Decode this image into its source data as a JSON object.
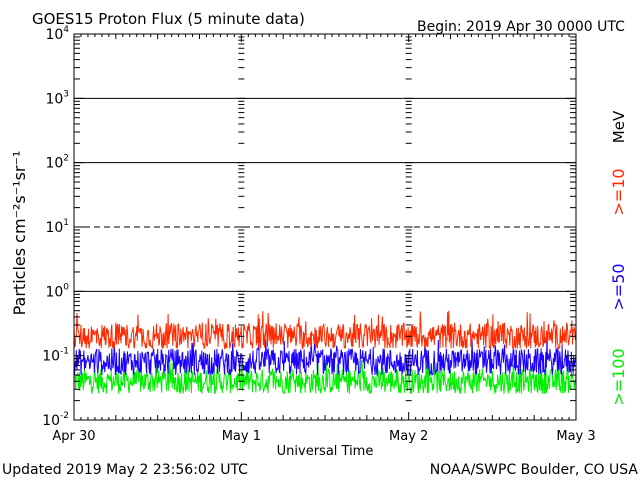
{
  "chart_data": {
    "type": "line",
    "title": "GOES15 Proton Flux (5 minute data)",
    "begin_label": "Begin: 2019 Apr 30 0000 UTC",
    "xlabel": "Universal Time",
    "ylabel": "Particles cm⁻²s⁻¹sr⁻¹",
    "y_scale": "log",
    "ylim": [
      0.01,
      10000
    ],
    "y_ticks": [
      {
        "base": "10",
        "exp": "4",
        "value": 10000
      },
      {
        "base": "10",
        "exp": "3",
        "value": 1000
      },
      {
        "base": "10",
        "exp": "2",
        "value": 100
      },
      {
        "base": "10",
        "exp": "1",
        "value": 10
      },
      {
        "base": "10",
        "exp": "0",
        "value": 1
      },
      {
        "base": "10",
        "exp": "-1",
        "value": 0.1
      },
      {
        "base": "10",
        "exp": "-2",
        "value": 0.01
      }
    ],
    "x_ticks": [
      "Apr 30",
      "May 1",
      "May 2",
      "May 3"
    ],
    "xlim": [
      "2019-04-30T00:00",
      "2019-05-03T00:00"
    ],
    "threshold_lines": [
      {
        "value": 1000,
        "style": "solid"
      },
      {
        "value": 100,
        "style": "solid"
      },
      {
        "value": 10,
        "style": "dashed"
      },
      {
        "value": 1,
        "style": "solid"
      }
    ],
    "energy_unit": "MeV",
    "series": [
      {
        "name": ">=10",
        "color": "#ff2a00",
        "baseline": 0.2,
        "low": 0.13,
        "high": 0.5
      },
      {
        "name": ">=50",
        "color": "#1a00ff",
        "baseline": 0.08,
        "low": 0.05,
        "high": 0.2
      },
      {
        "name": ">=100",
        "color": "#00ee00",
        "baseline": 0.04,
        "low": 0.025,
        "high": 0.09
      }
    ]
  },
  "footer": {
    "updated": "Updated 2019 May  2 23:56:02 UTC",
    "credit": "NOAA/SWPC Boulder, CO USA"
  }
}
